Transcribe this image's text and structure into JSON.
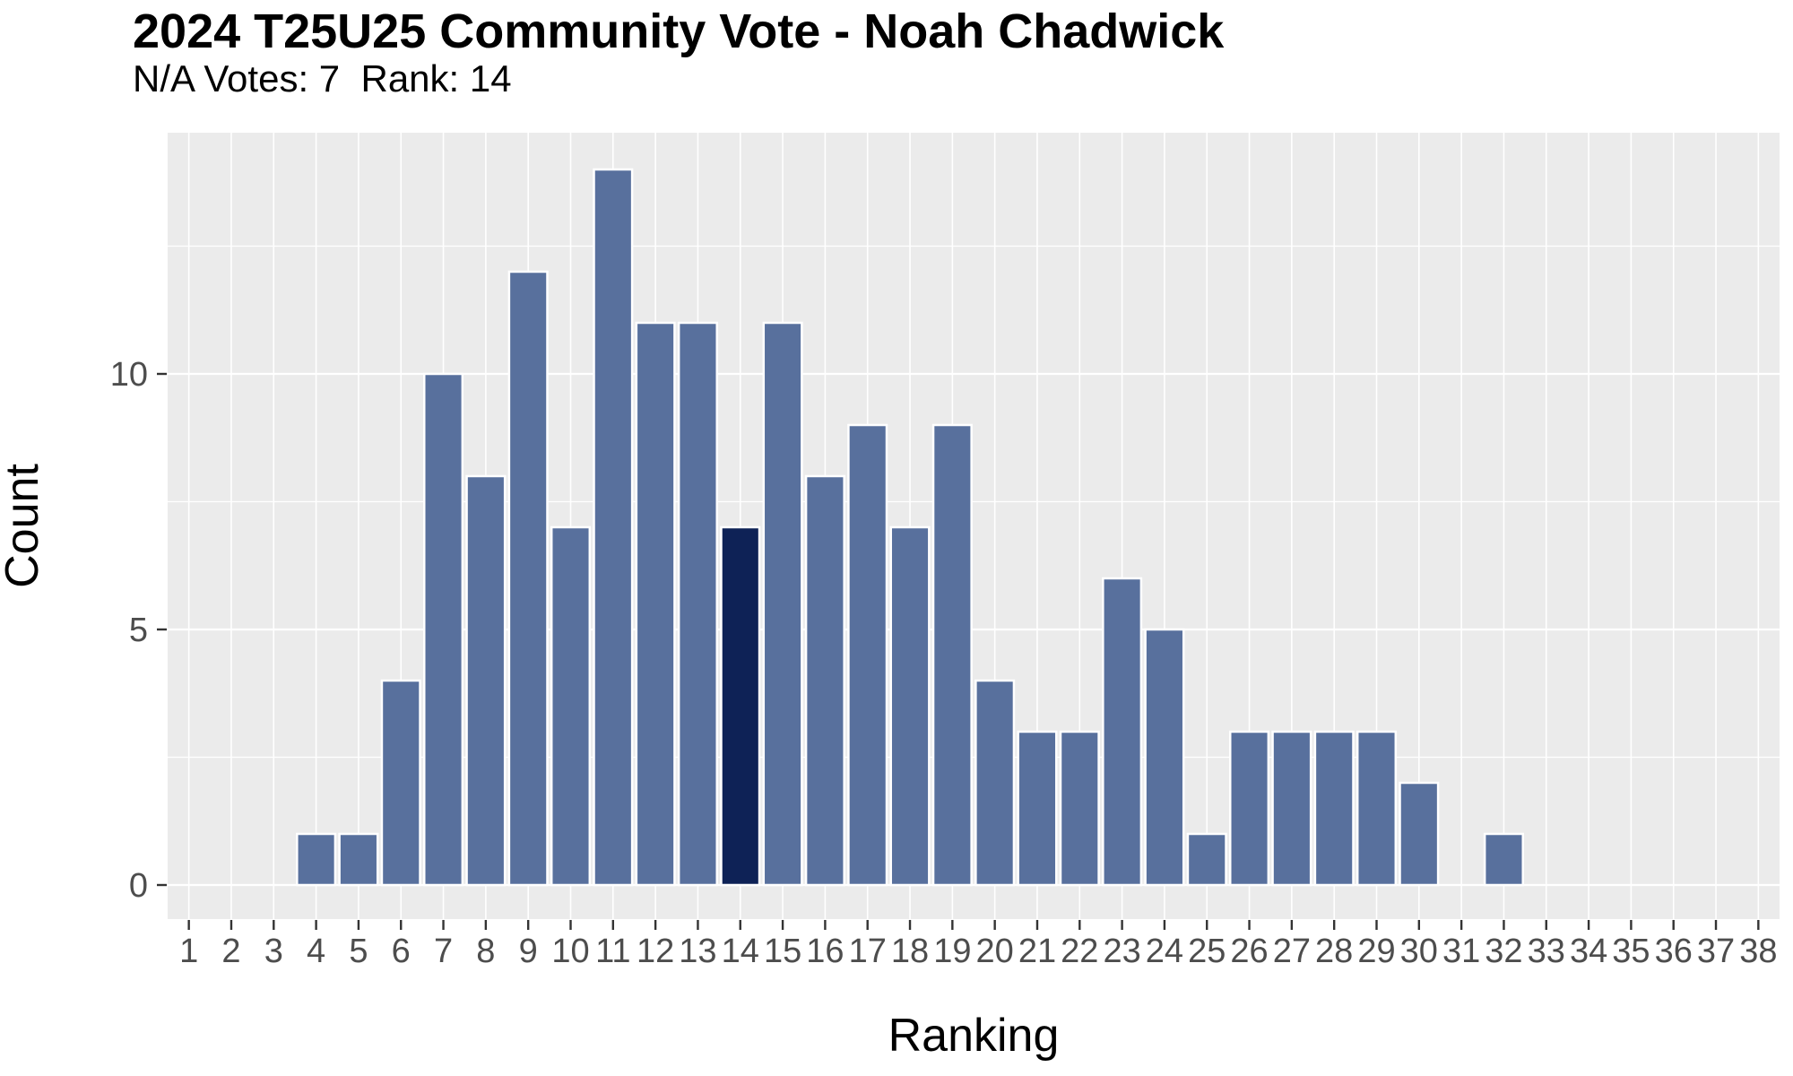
{
  "chart_data": {
    "type": "bar",
    "title": "2024 T25U25 Community Vote - Noah Chadwick",
    "subtitle": "N/A Votes: 7  Rank: 14",
    "xlabel": "Ranking",
    "ylabel": "Count",
    "categories": [
      1,
      2,
      3,
      4,
      5,
      6,
      7,
      8,
      9,
      10,
      11,
      12,
      13,
      14,
      15,
      16,
      17,
      18,
      19,
      20,
      21,
      22,
      23,
      24,
      25,
      26,
      27,
      28,
      29,
      30,
      31,
      32,
      33,
      34,
      35,
      36,
      37,
      38
    ],
    "values": [
      0,
      0,
      0,
      1,
      1,
      4,
      10,
      8,
      12,
      7,
      14,
      11,
      11,
      7,
      11,
      8,
      9,
      7,
      9,
      4,
      3,
      3,
      6,
      5,
      1,
      3,
      3,
      3,
      3,
      2,
      0,
      1,
      0,
      0,
      0,
      0,
      0,
      0
    ],
    "highlighted_category": 14,
    "na_votes": 7,
    "rank": 14,
    "yticks": [
      0,
      5,
      10
    ],
    "ylim": [
      0,
      14.7
    ],
    "grid": true,
    "legend": "none",
    "colors": {
      "bar": "#58709d",
      "highlighted_bar": "#0e2256",
      "plot_background": "#ebebeb",
      "gridline": "#ffffff",
      "tick_label": "#4d4d4d",
      "tick_mark": "#333333",
      "axis_title": "#000000"
    }
  }
}
